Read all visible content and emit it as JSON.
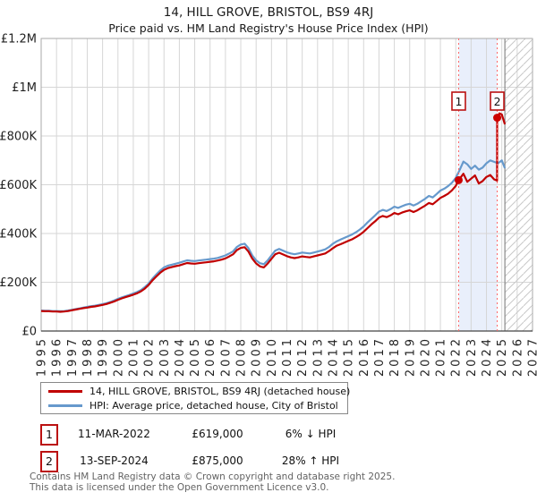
{
  "chart_data": {
    "type": "line",
    "title": "14, HILL GROVE, BRISTOL, BS9 4RJ",
    "subtitle": "Price paid vs. HM Land Registry's House Price Index (HPI)",
    "x_range": [
      1995,
      2027
    ],
    "x_axis": {
      "ticks": [
        1995,
        1996,
        1997,
        1998,
        1999,
        2000,
        2001,
        2002,
        2003,
        2004,
        2005,
        2006,
        2007,
        2008,
        2009,
        2010,
        2011,
        2012,
        2013,
        2014,
        2015,
        2016,
        2017,
        2018,
        2019,
        2020,
        2021,
        2022,
        2023,
        2024,
        2025,
        2026,
        2027
      ]
    },
    "y_axis": {
      "min": 0,
      "max": 1200000,
      "ticks": [
        {
          "value": 0,
          "label": "£0"
        },
        {
          "value": 200000,
          "label": "£200K"
        },
        {
          "value": 400000,
          "label": "£400K"
        },
        {
          "value": 600000,
          "label": "£600K"
        },
        {
          "value": 800000,
          "label": "£800K"
        },
        {
          "value": 1000000,
          "label": "£1M"
        },
        {
          "value": 1200000,
          "label": "£1.2M"
        }
      ]
    },
    "series": [
      {
        "name": "14, HILL GROVE, BRISTOL, BS9 4RJ (detached house)",
        "color": "#c00000",
        "points": [
          [
            1995.0,
            82000
          ],
          [
            1995.25,
            81000
          ],
          [
            1995.5,
            81000
          ],
          [
            1995.75,
            80000
          ],
          [
            1996.0,
            80000
          ],
          [
            1996.25,
            79000
          ],
          [
            1996.5,
            80000
          ],
          [
            1996.75,
            82000
          ],
          [
            1997.0,
            85000
          ],
          [
            1997.25,
            88000
          ],
          [
            1997.5,
            91000
          ],
          [
            1997.75,
            94000
          ],
          [
            1998.0,
            96000
          ],
          [
            1998.25,
            99000
          ],
          [
            1998.5,
            101000
          ],
          [
            1998.75,
            104000
          ],
          [
            1999.0,
            107000
          ],
          [
            1999.25,
            111000
          ],
          [
            1999.5,
            116000
          ],
          [
            1999.75,
            121000
          ],
          [
            2000.0,
            128000
          ],
          [
            2000.25,
            134000
          ],
          [
            2000.5,
            139000
          ],
          [
            2000.75,
            144000
          ],
          [
            2001.0,
            149000
          ],
          [
            2001.25,
            155000
          ],
          [
            2001.5,
            163000
          ],
          [
            2001.75,
            174000
          ],
          [
            2002.0,
            189000
          ],
          [
            2002.25,
            208000
          ],
          [
            2002.5,
            224000
          ],
          [
            2002.75,
            239000
          ],
          [
            2003.0,
            251000
          ],
          [
            2003.25,
            258000
          ],
          [
            2003.5,
            262000
          ],
          [
            2003.75,
            266000
          ],
          [
            2004.0,
            269000
          ],
          [
            2004.25,
            274000
          ],
          [
            2004.5,
            279000
          ],
          [
            2004.75,
            277000
          ],
          [
            2005.0,
            276000
          ],
          [
            2005.25,
            278000
          ],
          [
            2005.5,
            280000
          ],
          [
            2005.75,
            282000
          ],
          [
            2006.0,
            284000
          ],
          [
            2006.25,
            286000
          ],
          [
            2006.5,
            289000
          ],
          [
            2006.75,
            293000
          ],
          [
            2007.0,
            298000
          ],
          [
            2007.25,
            306000
          ],
          [
            2007.5,
            315000
          ],
          [
            2007.75,
            332000
          ],
          [
            2008.0,
            341000
          ],
          [
            2008.25,
            344000
          ],
          [
            2008.5,
            326000
          ],
          [
            2008.75,
            297000
          ],
          [
            2009.0,
            277000
          ],
          [
            2009.25,
            265000
          ],
          [
            2009.5,
            261000
          ],
          [
            2009.75,
            277000
          ],
          [
            2010.0,
            296000
          ],
          [
            2010.25,
            315000
          ],
          [
            2010.5,
            321000
          ],
          [
            2010.75,
            314000
          ],
          [
            2011.0,
            307000
          ],
          [
            2011.25,
            302000
          ],
          [
            2011.5,
            299000
          ],
          [
            2011.75,
            302000
          ],
          [
            2012.0,
            306000
          ],
          [
            2012.25,
            304000
          ],
          [
            2012.5,
            302000
          ],
          [
            2012.75,
            306000
          ],
          [
            2013.0,
            310000
          ],
          [
            2013.25,
            314000
          ],
          [
            2013.5,
            318000
          ],
          [
            2013.75,
            328000
          ],
          [
            2014.0,
            340000
          ],
          [
            2014.25,
            350000
          ],
          [
            2014.5,
            356000
          ],
          [
            2014.75,
            363000
          ],
          [
            2015.0,
            370000
          ],
          [
            2015.25,
            376000
          ],
          [
            2015.5,
            385000
          ],
          [
            2015.75,
            395000
          ],
          [
            2016.0,
            407000
          ],
          [
            2016.25,
            422000
          ],
          [
            2016.5,
            437000
          ],
          [
            2016.75,
            450000
          ],
          [
            2017.0,
            465000
          ],
          [
            2017.25,
            472000
          ],
          [
            2017.5,
            467000
          ],
          [
            2017.75,
            474000
          ],
          [
            2018.0,
            484000
          ],
          [
            2018.25,
            479000
          ],
          [
            2018.5,
            486000
          ],
          [
            2018.75,
            491000
          ],
          [
            2019.0,
            495000
          ],
          [
            2019.25,
            488000
          ],
          [
            2019.5,
            495000
          ],
          [
            2019.75,
            505000
          ],
          [
            2020.0,
            514000
          ],
          [
            2020.25,
            525000
          ],
          [
            2020.5,
            520000
          ],
          [
            2020.75,
            533000
          ],
          [
            2021.0,
            546000
          ],
          [
            2021.25,
            554000
          ],
          [
            2021.5,
            563000
          ],
          [
            2021.75,
            577000
          ],
          [
            2022.0,
            595000
          ],
          [
            2022.19,
            619000
          ],
          [
            2022.5,
            645000
          ],
          [
            2022.75,
            612000
          ],
          [
            2023.0,
            625000
          ],
          [
            2023.25,
            638000
          ],
          [
            2023.5,
            605000
          ],
          [
            2023.75,
            615000
          ],
          [
            2024.0,
            632000
          ],
          [
            2024.25,
            640000
          ],
          [
            2024.5,
            622000
          ],
          [
            2024.69,
            617000
          ],
          [
            2024.7,
            875000
          ],
          [
            2024.85,
            893000
          ],
          [
            2025.0,
            888000
          ],
          [
            2025.2,
            848000
          ]
        ]
      },
      {
        "name": "HPI: Average price, detached house, City of Bristol",
        "color": "#6699cc",
        "points": [
          [
            1995.0,
            84000
          ],
          [
            1995.25,
            83000
          ],
          [
            1995.5,
            83000
          ],
          [
            1995.75,
            82000
          ],
          [
            1996.0,
            82000
          ],
          [
            1996.25,
            81000
          ],
          [
            1996.5,
            82000
          ],
          [
            1996.75,
            84000
          ],
          [
            1997.0,
            87000
          ],
          [
            1997.25,
            90000
          ],
          [
            1997.5,
            93000
          ],
          [
            1997.75,
            96000
          ],
          [
            1998.0,
            99000
          ],
          [
            1998.25,
            102000
          ],
          [
            1998.5,
            104000
          ],
          [
            1998.75,
            107000
          ],
          [
            1999.0,
            110000
          ],
          [
            1999.25,
            114000
          ],
          [
            1999.5,
            119000
          ],
          [
            1999.75,
            125000
          ],
          [
            2000.0,
            132000
          ],
          [
            2000.25,
            138000
          ],
          [
            2000.5,
            143000
          ],
          [
            2000.75,
            148000
          ],
          [
            2001.0,
            154000
          ],
          [
            2001.25,
            160000
          ],
          [
            2001.5,
            168000
          ],
          [
            2001.75,
            180000
          ],
          [
            2002.0,
            195000
          ],
          [
            2002.25,
            215000
          ],
          [
            2002.5,
            232000
          ],
          [
            2002.75,
            248000
          ],
          [
            2003.0,
            261000
          ],
          [
            2003.25,
            268000
          ],
          [
            2003.5,
            272000
          ],
          [
            2003.75,
            276000
          ],
          [
            2004.0,
            280000
          ],
          [
            2004.25,
            285000
          ],
          [
            2004.5,
            290000
          ],
          [
            2004.75,
            288000
          ],
          [
            2005.0,
            287000
          ],
          [
            2005.25,
            289000
          ],
          [
            2005.5,
            291000
          ],
          [
            2005.75,
            293000
          ],
          [
            2006.0,
            295000
          ],
          [
            2006.25,
            297000
          ],
          [
            2006.5,
            300000
          ],
          [
            2006.75,
            305000
          ],
          [
            2007.0,
            310000
          ],
          [
            2007.25,
            318000
          ],
          [
            2007.5,
            327000
          ],
          [
            2007.75,
            345000
          ],
          [
            2008.0,
            355000
          ],
          [
            2008.25,
            358000
          ],
          [
            2008.5,
            340000
          ],
          [
            2008.75,
            310000
          ],
          [
            2009.0,
            290000
          ],
          [
            2009.25,
            278000
          ],
          [
            2009.5,
            274000
          ],
          [
            2009.75,
            290000
          ],
          [
            2010.0,
            310000
          ],
          [
            2010.25,
            330000
          ],
          [
            2010.5,
            337000
          ],
          [
            2010.75,
            330000
          ],
          [
            2011.0,
            323000
          ],
          [
            2011.25,
            318000
          ],
          [
            2011.5,
            315000
          ],
          [
            2011.75,
            318000
          ],
          [
            2012.0,
            322000
          ],
          [
            2012.25,
            320000
          ],
          [
            2012.5,
            318000
          ],
          [
            2012.75,
            322000
          ],
          [
            2013.0,
            326000
          ],
          [
            2013.25,
            330000
          ],
          [
            2013.5,
            335000
          ],
          [
            2013.75,
            345000
          ],
          [
            2014.0,
            358000
          ],
          [
            2014.25,
            368000
          ],
          [
            2014.5,
            375000
          ],
          [
            2014.75,
            382000
          ],
          [
            2015.0,
            389000
          ],
          [
            2015.25,
            396000
          ],
          [
            2015.5,
            405000
          ],
          [
            2015.75,
            416000
          ],
          [
            2016.0,
            429000
          ],
          [
            2016.25,
            445000
          ],
          [
            2016.5,
            460000
          ],
          [
            2016.75,
            474000
          ],
          [
            2017.0,
            490000
          ],
          [
            2017.25,
            497000
          ],
          [
            2017.5,
            492000
          ],
          [
            2017.75,
            500000
          ],
          [
            2018.0,
            510000
          ],
          [
            2018.25,
            505000
          ],
          [
            2018.5,
            512000
          ],
          [
            2018.75,
            518000
          ],
          [
            2019.0,
            522000
          ],
          [
            2019.25,
            515000
          ],
          [
            2019.5,
            522000
          ],
          [
            2019.75,
            532000
          ],
          [
            2020.0,
            542000
          ],
          [
            2020.25,
            554000
          ],
          [
            2020.5,
            548000
          ],
          [
            2020.75,
            562000
          ],
          [
            2021.0,
            576000
          ],
          [
            2021.25,
            584000
          ],
          [
            2021.5,
            594000
          ],
          [
            2021.75,
            608000
          ],
          [
            2022.0,
            628000
          ],
          [
            2022.25,
            660000
          ],
          [
            2022.5,
            695000
          ],
          [
            2022.75,
            684000
          ],
          [
            2023.0,
            665000
          ],
          [
            2023.25,
            678000
          ],
          [
            2023.5,
            662000
          ],
          [
            2023.75,
            670000
          ],
          [
            2024.0,
            688000
          ],
          [
            2024.25,
            700000
          ],
          [
            2024.5,
            694000
          ],
          [
            2024.75,
            688000
          ],
          [
            2025.0,
            700000
          ],
          [
            2025.2,
            668000
          ]
        ]
      }
    ],
    "sales": [
      {
        "n": "1",
        "x": 2022.19,
        "value": 619000,
        "date": "11-MAR-2022",
        "price": "£619,000",
        "hpi": "6% ↓ HPI"
      },
      {
        "n": "2",
        "x": 2024.7,
        "value": 875000,
        "date": "13-SEP-2024",
        "price": "£875,000",
        "hpi": "28% ↑ HPI"
      }
    ],
    "shaded_region": {
      "from": 2022.19,
      "to": 2024.7
    },
    "hatch_region": {
      "from": 2025.2,
      "to": 2027
    },
    "legend_position": "bottom-left",
    "grid": true
  },
  "colors": {
    "red_line": "#c00000",
    "blue_line": "#6699cc",
    "band": "#e9effb",
    "dashed": "#ff6666",
    "grid": "#d6d6d6",
    "border": "#aaaaaa",
    "axis": "#444444",
    "hatch": "#c8c8c8",
    "marker_border": "#bb1111",
    "dot": "#cc0000",
    "tick_text": "#222222"
  },
  "footer": {
    "line1": "Contains HM Land Registry data © Crown copyright and database right 2025.",
    "line2": "This data is licensed under the Open Government Licence v3.0."
  }
}
